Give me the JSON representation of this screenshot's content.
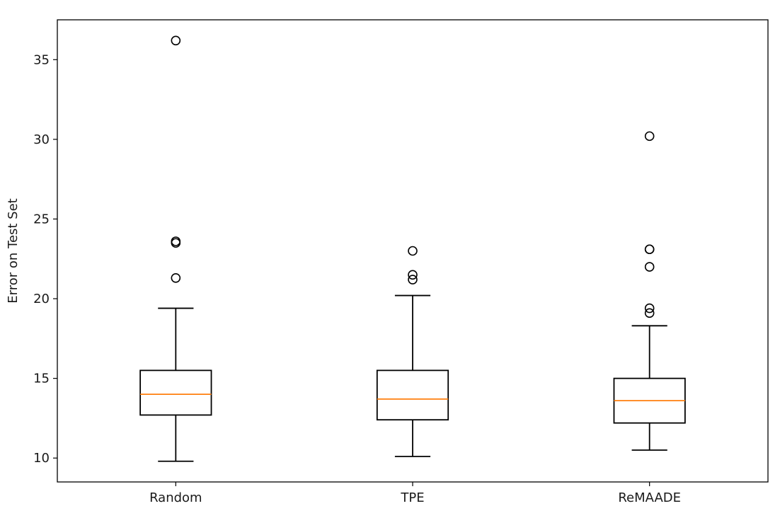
{
  "chart_data": {
    "type": "box",
    "title": "",
    "xlabel": "",
    "ylabel": "Error on Test Set",
    "categories": [
      "Random",
      "TPE",
      "ReMAADE"
    ],
    "ylim": [
      8.5,
      37.5
    ],
    "yticks": [
      10,
      15,
      20,
      25,
      30,
      35
    ],
    "grid": false,
    "legend": "none",
    "boxes": [
      {
        "label": "Random",
        "whisker_low": 9.8,
        "q1": 12.7,
        "median": 14.0,
        "q3": 15.5,
        "whisker_high": 19.4,
        "outliers": [
          21.3,
          23.5,
          23.6,
          36.2
        ]
      },
      {
        "label": "TPE",
        "whisker_low": 10.1,
        "q1": 12.4,
        "median": 13.7,
        "q3": 15.5,
        "whisker_high": 20.2,
        "outliers": [
          21.2,
          21.5,
          23.0
        ]
      },
      {
        "label": "ReMAADE",
        "whisker_low": 10.5,
        "q1": 12.2,
        "median": 13.6,
        "q3": 15.0,
        "whisker_high": 18.3,
        "outliers": [
          19.1,
          19.4,
          22.0,
          23.1,
          23.1,
          30.2
        ]
      }
    ],
    "colors": {
      "box": "#000000",
      "median": "#ff7f0e",
      "outlier": "#000000"
    }
  }
}
